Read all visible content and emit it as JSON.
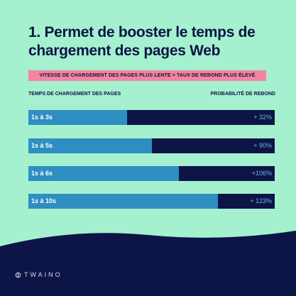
{
  "title": "1. Permet de booster le temps de chargement des pages Web",
  "banner": "VITESSE DE CHARGEMENT DES PAGES PLUS LENTE = TAUX DE REBOND PLUS ÉLEVÉ",
  "column_left": "TEMPS DE CHARGEMENT DES PAGES",
  "column_right": "PROBABILITÉ DE REBOND",
  "brand": "TWAINO",
  "colors": {
    "background": "#a5f0cf",
    "navy": "#0d1446",
    "bar": "#2f8ec1",
    "banner": "#f4849f"
  },
  "chart_data": {
    "type": "bar",
    "orientation": "horizontal",
    "title": "1. Permet de booster le temps de chargement des pages Web",
    "xlabel": "PROBABILITÉ DE REBOND",
    "ylabel": "TEMPS DE CHARGEMENT DES PAGES",
    "categories": [
      "1s à 3s",
      "1s à 5s",
      "1s à 6s",
      "1s à 10s"
    ],
    "values": [
      32,
      90,
      106,
      123
    ],
    "value_labels": [
      "+ 32%",
      "+ 90%",
      "+106%",
      "+ 123%"
    ],
    "unit": "%",
    "fill_fraction": [
      0.4,
      0.5,
      0.61,
      0.77
    ],
    "grid": false,
    "legend": "none"
  }
}
